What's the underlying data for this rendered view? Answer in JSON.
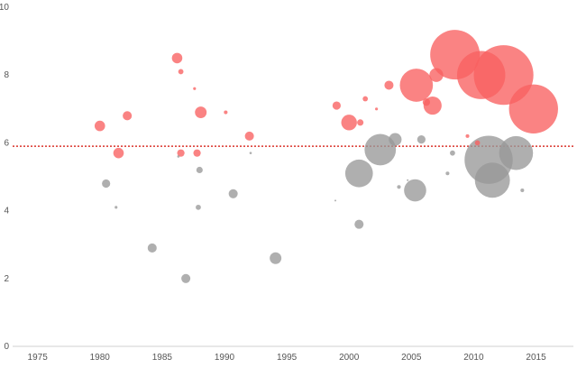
{
  "chart_data": {
    "type": "scatter",
    "title": "",
    "xlabel": "",
    "ylabel": "",
    "xlim": [
      1973,
      2018
    ],
    "ylim": [
      0,
      10
    ],
    "x_ticks": [
      "1975",
      "1980",
      "1985",
      "1990",
      "1995",
      "2000",
      "2005",
      "2010",
      "2015"
    ],
    "y_ticks": [
      "0",
      "2",
      "4",
      "6",
      "8",
      "10"
    ],
    "grid": false,
    "reference_line": {
      "y": 5.9,
      "color": "#d9342b",
      "style": "dotted"
    },
    "colors": {
      "above": "#f96060",
      "below": "#999999"
    },
    "series": [
      {
        "group": "above",
        "points": [
          {
            "x": 1980.0,
            "y": 6.5,
            "size": 4
          },
          {
            "x": 1981.5,
            "y": 5.7,
            "size": 4
          },
          {
            "x": 1982.2,
            "y": 6.8,
            "size": 3
          },
          {
            "x": 1986.2,
            "y": 8.5,
            "size": 4
          },
          {
            "x": 1986.5,
            "y": 8.1,
            "size": 1
          },
          {
            "x": 1986.5,
            "y": 5.7,
            "size": 2
          },
          {
            "x": 1987.6,
            "y": 7.6,
            "size": 0.3
          },
          {
            "x": 1987.8,
            "y": 5.7,
            "size": 2
          },
          {
            "x": 1988.1,
            "y": 6.9,
            "size": 5
          },
          {
            "x": 1990.1,
            "y": 6.9,
            "size": 0.5
          },
          {
            "x": 1992.0,
            "y": 6.2,
            "size": 3
          },
          {
            "x": 1999.0,
            "y": 7.1,
            "size": 2.5
          },
          {
            "x": 2000.0,
            "y": 6.6,
            "size": 9
          },
          {
            "x": 2000.9,
            "y": 6.6,
            "size": 1.5
          },
          {
            "x": 2001.3,
            "y": 7.3,
            "size": 1
          },
          {
            "x": 2002.2,
            "y": 7.0,
            "size": 0.3
          },
          {
            "x": 2003.2,
            "y": 7.7,
            "size": 3
          },
          {
            "x": 2005.4,
            "y": 7.7,
            "size": 40
          },
          {
            "x": 2006.2,
            "y": 7.2,
            "size": 2
          },
          {
            "x": 2006.7,
            "y": 7.1,
            "size": 12
          },
          {
            "x": 2007.0,
            "y": 8.0,
            "size": 7
          },
          {
            "x": 2008.5,
            "y": 8.6,
            "size": 90
          },
          {
            "x": 2009.5,
            "y": 6.2,
            "size": 0.5
          },
          {
            "x": 2010.3,
            "y": 6.0,
            "size": 1
          },
          {
            "x": 2010.6,
            "y": 8.0,
            "size": 85
          },
          {
            "x": 2012.4,
            "y": 8.0,
            "size": 130
          },
          {
            "x": 2014.8,
            "y": 7.0,
            "size": 88
          }
        ]
      },
      {
        "group": "below",
        "points": [
          {
            "x": 1980.5,
            "y": 4.8,
            "size": 2.5
          },
          {
            "x": 1981.3,
            "y": 4.1,
            "size": 0.3
          },
          {
            "x": 1984.2,
            "y": 2.9,
            "size": 3
          },
          {
            "x": 1986.3,
            "y": 5.6,
            "size": 0.2
          },
          {
            "x": 1986.9,
            "y": 2.0,
            "size": 3
          },
          {
            "x": 1987.9,
            "y": 4.1,
            "size": 1
          },
          {
            "x": 1988.0,
            "y": 5.2,
            "size": 1.5
          },
          {
            "x": 1990.7,
            "y": 4.5,
            "size": 3
          },
          {
            "x": 1992.1,
            "y": 5.7,
            "size": 0.2
          },
          {
            "x": 1994.1,
            "y": 2.6,
            "size": 5
          },
          {
            "x": 1998.9,
            "y": 4.3,
            "size": 0.1
          },
          {
            "x": 2000.8,
            "y": 3.6,
            "size": 3
          },
          {
            "x": 2000.8,
            "y": 5.1,
            "size": 28
          },
          {
            "x": 2002.5,
            "y": 5.8,
            "size": 36
          },
          {
            "x": 2003.7,
            "y": 6.1,
            "size": 6
          },
          {
            "x": 2004.0,
            "y": 4.7,
            "size": 0.5
          },
          {
            "x": 2004.7,
            "y": 4.9,
            "size": 0.1
          },
          {
            "x": 2005.3,
            "y": 4.6,
            "size": 18
          },
          {
            "x": 2005.8,
            "y": 6.1,
            "size": 2.5
          },
          {
            "x": 2007.9,
            "y": 5.1,
            "size": 0.5
          },
          {
            "x": 2008.3,
            "y": 5.7,
            "size": 1
          },
          {
            "x": 2011.2,
            "y": 5.5,
            "size": 85
          },
          {
            "x": 2011.5,
            "y": 4.9,
            "size": 45
          },
          {
            "x": 2013.4,
            "y": 5.7,
            "size": 42
          },
          {
            "x": 2013.9,
            "y": 4.6,
            "size": 0.5
          }
        ]
      }
    ]
  }
}
